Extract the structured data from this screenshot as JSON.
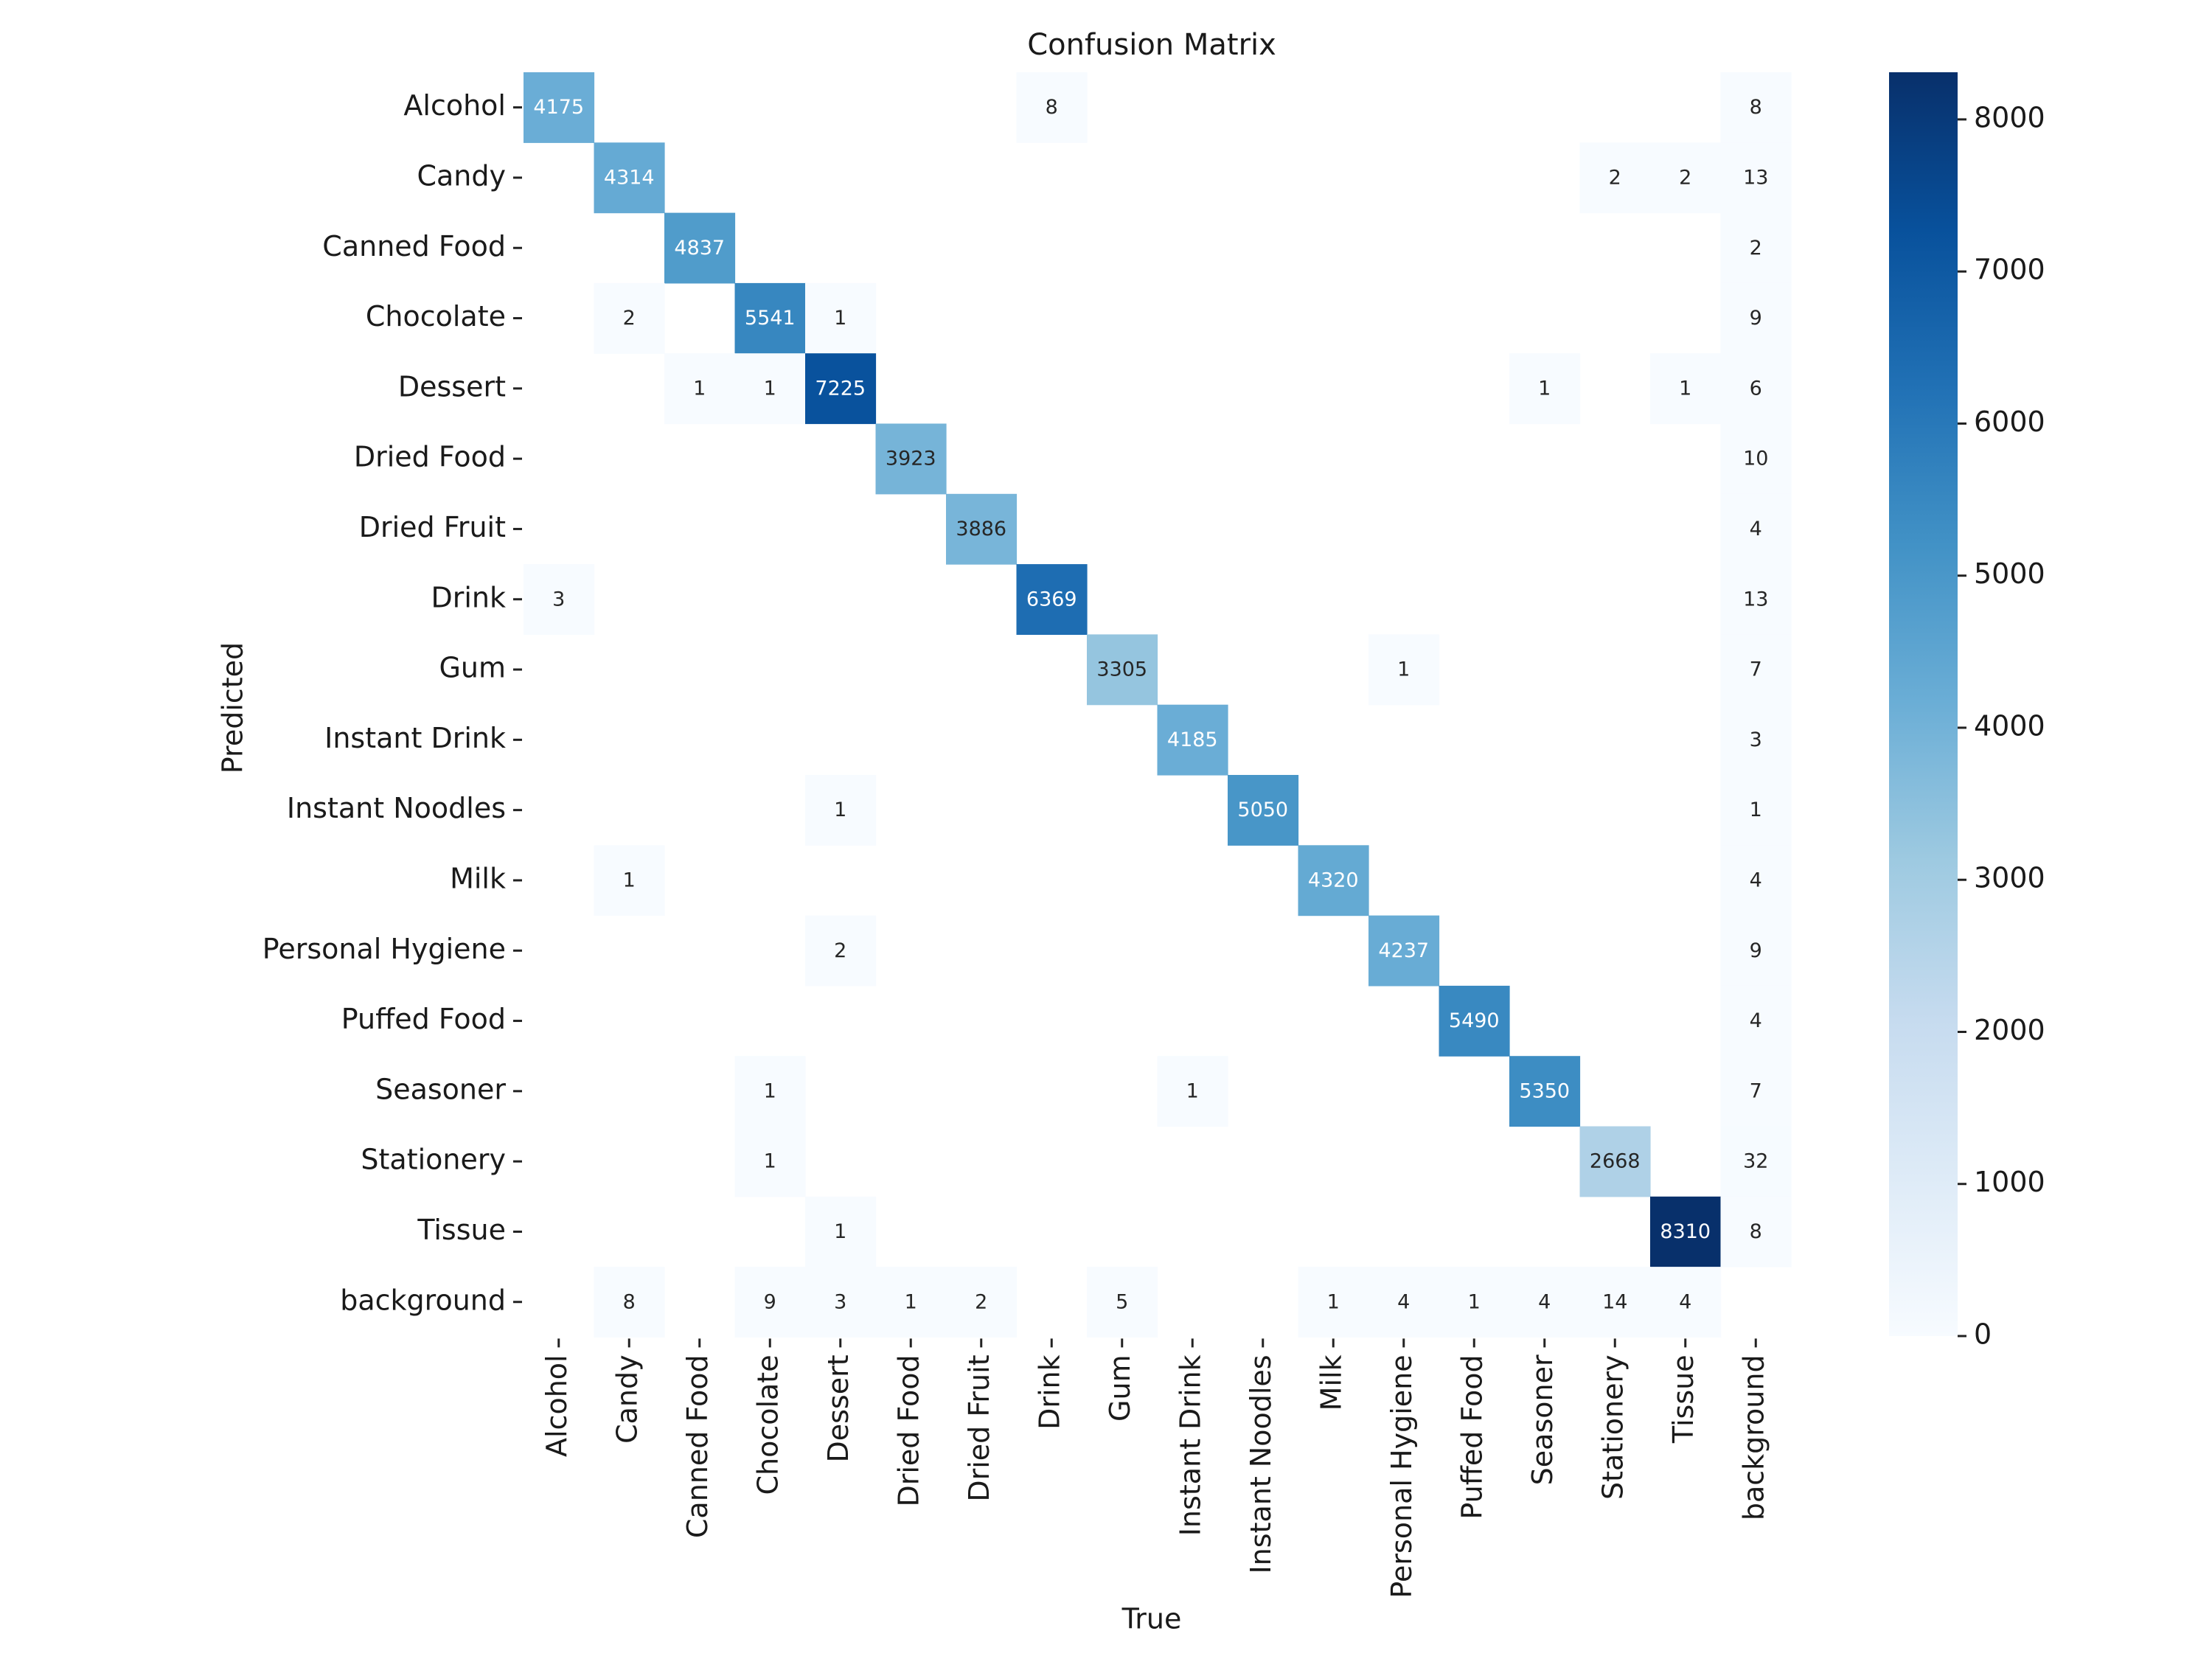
{
  "chart_data": {
    "type": "heatmap",
    "title": "Confusion Matrix",
    "xlabel": "True",
    "ylabel": "Predicted",
    "x_categories": [
      "Alcohol",
      "Candy",
      "Canned Food",
      "Chocolate",
      "Dessert",
      "Dried Food",
      "Dried Fruit",
      "Drink",
      "Gum",
      "Instant Drink",
      "Instant Noodles",
      "Milk",
      "Personal Hygiene",
      "Puffed Food",
      "Seasoner",
      "Stationery",
      "Tissue",
      "background"
    ],
    "y_categories": [
      "Alcohol",
      "Candy",
      "Canned Food",
      "Chocolate",
      "Dessert",
      "Dried Food",
      "Dried Fruit",
      "Drink",
      "Gum",
      "Instant Drink",
      "Instant Noodles",
      "Milk",
      "Personal Hygiene",
      "Puffed Food",
      "Seasoner",
      "Stationery",
      "Tissue",
      "background"
    ],
    "matrix": [
      [
        4175,
        0,
        0,
        0,
        0,
        0,
        0,
        8,
        0,
        0,
        0,
        0,
        0,
        0,
        0,
        0,
        0,
        8
      ],
      [
        0,
        4314,
        0,
        0,
        0,
        0,
        0,
        0,
        0,
        0,
        0,
        0,
        0,
        0,
        0,
        2,
        2,
        13
      ],
      [
        0,
        0,
        4837,
        0,
        0,
        0,
        0,
        0,
        0,
        0,
        0,
        0,
        0,
        0,
        0,
        0,
        0,
        2
      ],
      [
        0,
        2,
        0,
        5541,
        1,
        0,
        0,
        0,
        0,
        0,
        0,
        0,
        0,
        0,
        0,
        0,
        0,
        9
      ],
      [
        0,
        0,
        1,
        1,
        7225,
        0,
        0,
        0,
        0,
        0,
        0,
        0,
        0,
        0,
        1,
        0,
        1,
        6
      ],
      [
        0,
        0,
        0,
        0,
        0,
        3923,
        0,
        0,
        0,
        0,
        0,
        0,
        0,
        0,
        0,
        0,
        0,
        10
      ],
      [
        0,
        0,
        0,
        0,
        0,
        0,
        3886,
        0,
        0,
        0,
        0,
        0,
        0,
        0,
        0,
        0,
        0,
        4
      ],
      [
        3,
        0,
        0,
        0,
        0,
        0,
        0,
        6369,
        0,
        0,
        0,
        0,
        0,
        0,
        0,
        0,
        0,
        13
      ],
      [
        0,
        0,
        0,
        0,
        0,
        0,
        0,
        0,
        3305,
        0,
        0,
        0,
        1,
        0,
        0,
        0,
        0,
        7
      ],
      [
        0,
        0,
        0,
        0,
        0,
        0,
        0,
        0,
        0,
        4185,
        0,
        0,
        0,
        0,
        0,
        0,
        0,
        3
      ],
      [
        0,
        0,
        0,
        0,
        1,
        0,
        0,
        0,
        0,
        0,
        5050,
        0,
        0,
        0,
        0,
        0,
        0,
        1
      ],
      [
        0,
        1,
        0,
        0,
        0,
        0,
        0,
        0,
        0,
        0,
        0,
        4320,
        0,
        0,
        0,
        0,
        0,
        4
      ],
      [
        0,
        0,
        0,
        0,
        2,
        0,
        0,
        0,
        0,
        0,
        0,
        0,
        4237,
        0,
        0,
        0,
        0,
        9
      ],
      [
        0,
        0,
        0,
        0,
        0,
        0,
        0,
        0,
        0,
        0,
        0,
        0,
        0,
        5490,
        0,
        0,
        0,
        4
      ],
      [
        0,
        0,
        0,
        1,
        0,
        0,
        0,
        0,
        0,
        1,
        0,
        0,
        0,
        0,
        5350,
        0,
        0,
        7
      ],
      [
        0,
        0,
        0,
        1,
        0,
        0,
        0,
        0,
        0,
        0,
        0,
        0,
        0,
        0,
        0,
        2668,
        0,
        32
      ],
      [
        0,
        0,
        0,
        0,
        1,
        0,
        0,
        0,
        0,
        0,
        0,
        0,
        0,
        0,
        0,
        0,
        8310,
        8
      ],
      [
        0,
        8,
        0,
        9,
        3,
        1,
        2,
        0,
        5,
        0,
        0,
        1,
        4,
        1,
        4,
        14,
        4,
        0
      ]
    ],
    "hide_zero_cells": true,
    "colormap": "Blues",
    "colorbar": {
      "range": [
        0,
        8310
      ],
      "ticks": [
        0,
        1000,
        2000,
        3000,
        4000,
        5000,
        6000,
        7000,
        8000
      ],
      "tick_labels": [
        "0",
        "1000",
        "2000",
        "3000",
        "4000",
        "5000",
        "6000",
        "7000",
        "8000"
      ]
    },
    "colors": [
      "#f7fbff",
      "#deebf7",
      "#c6dbef",
      "#9ecae1",
      "#6baed6",
      "#4292c6",
      "#2171b5",
      "#08519c",
      "#08306b"
    ]
  }
}
